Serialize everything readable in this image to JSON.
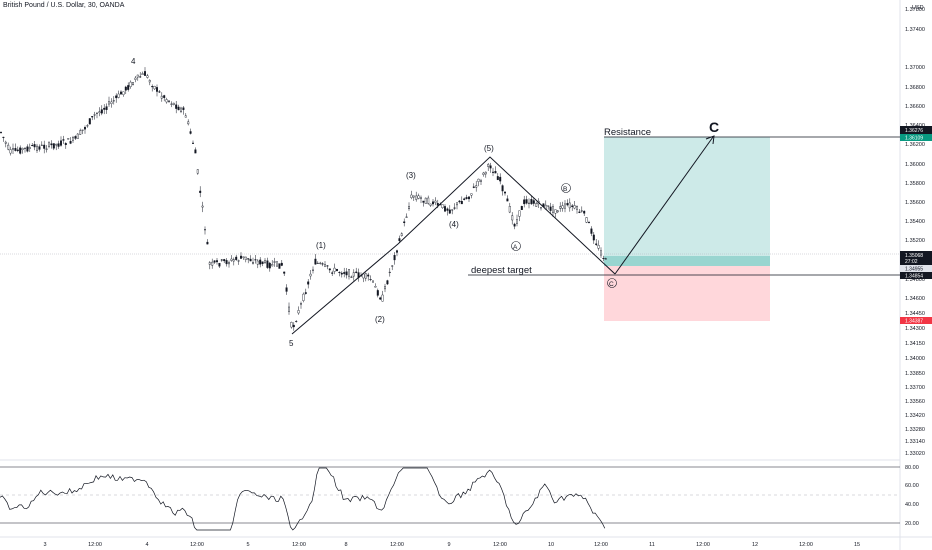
{
  "header": {
    "symbol_title": "British Pound / U.S. Dollar, 30, OANDA"
  },
  "colors": {
    "candle": "#131722",
    "target_zone": "#b2dfdb",
    "stop_zone": "#ffcdd2",
    "resistance_tag": "#131722",
    "target_tag": "#089981",
    "stop_tag": "#f23645",
    "current_tag": "#131722"
  },
  "chart_data": [
    {
      "type": "candlestick",
      "yunit": "USD",
      "y_ticks": [
        "1.37800",
        "1.37400",
        "1.37000",
        "1.36800",
        "1.36600",
        "1.36400",
        "1.36200",
        "1.36000",
        "1.35800",
        "1.35600",
        "1.35400",
        "1.35200",
        "1.34800",
        "1.34600",
        "1.34450",
        "1.34300",
        "1.34150",
        "1.34000",
        "1.33850",
        "1.33700",
        "1.33560",
        "1.33420",
        "1.33280",
        "1.33140",
        "1.33020"
      ],
      "x_ticks": [
        "3",
        "12:00",
        "4",
        "12:00",
        "5",
        "12:00",
        "8",
        "12:00",
        "9",
        "12:00",
        "10",
        "12:00",
        "11",
        "12:00",
        "12",
        "12:00",
        "15"
      ],
      "price_tags": {
        "resistance": "1.36276",
        "target": "1.36109",
        "current": "1.35068",
        "countdown": "27:02",
        "entry": "1.34955",
        "deep": "1.34854",
        "stop": "1.34387"
      },
      "annotations": {
        "resistance": "Resistance",
        "deepest_target": "deepest target",
        "wave_c_big": "C",
        "wave_4": "4",
        "wave_5": "5",
        "wave_1": "(1)",
        "wave_2": "(2)",
        "wave_3": "(3)",
        "wave_4b": "(4)",
        "wave_5b": "(5)",
        "circle_a": "A",
        "circle_b": "B",
        "circle_c": "C"
      },
      "grid": false
    },
    {
      "type": "line",
      "indicator": "oscillator",
      "y_ticks": [
        "80.00",
        "60.00",
        "40.00",
        "20.00"
      ],
      "bands": [
        80,
        50,
        20
      ],
      "ylim": [
        10,
        90
      ]
    }
  ]
}
